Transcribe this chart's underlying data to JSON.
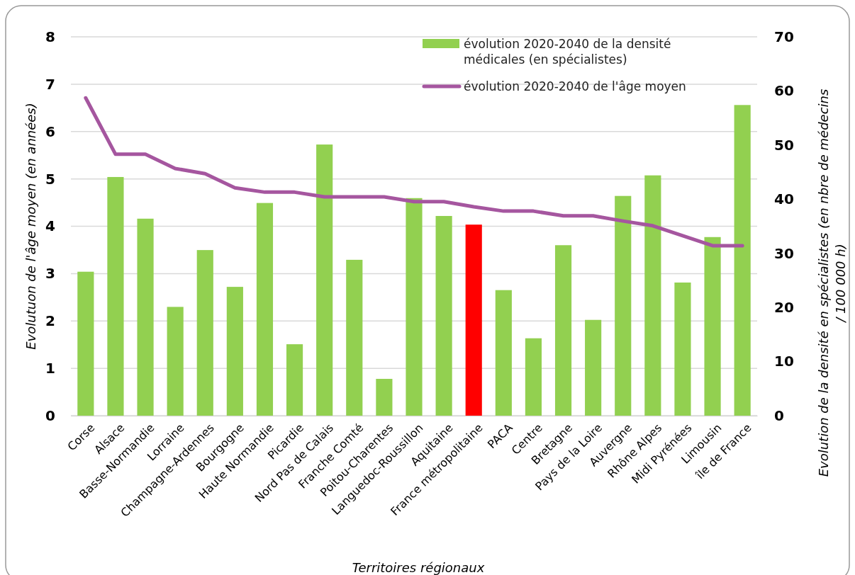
{
  "chart_data": {
    "type": "bar",
    "xlabel": "Territoires régionaux",
    "ylabel": "Evolutuon de l'âge moyen (en années)",
    "y2label": "Evolution  de la densité en spécialistes (en nbre de médecins / 100 000 h)",
    "categories": [
      "Corse",
      "Alsace",
      "Basse-Normandie",
      "Lorraine",
      "Champagne-Ardennes",
      "Bourgogne",
      "Haute Normandie",
      "Picardie",
      "Nord Pas de Calais",
      "Franche Comté",
      "Poitou-Charentes",
      "Languedoc-Roussillon",
      "Aquitaine",
      "France métropolitaine",
      "PACA",
      "Centre",
      "Bretagne",
      "Pays de la Loire",
      "Auvergne",
      "Rhône Alpes",
      "Midi Pyrénées",
      "Limousin",
      "île de France"
    ],
    "series": [
      {
        "name": "évolution 2020-2040 de la densité médicales (en spécialistes)",
        "axis": "y2",
        "color": "#92d050",
        "colors": [
          "#92d050",
          "#92d050",
          "#92d050",
          "#92d050",
          "#92d050",
          "#92d050",
          "#92d050",
          "#92d050",
          "#92d050",
          "#92d050",
          "#92d050",
          "#92d050",
          "#92d050",
          "#ff0000",
          "#92d050",
          "#92d050",
          "#92d050",
          "#92d050",
          "#92d050",
          "#92d050",
          "#92d050",
          "#92d050",
          "#92d050"
        ],
        "values": [
          26.6,
          44.1,
          36.4,
          20.1,
          30.6,
          23.8,
          39.3,
          13.2,
          50.1,
          28.8,
          6.8,
          40.2,
          36.9,
          35.3,
          23.2,
          14.3,
          31.5,
          17.7,
          40.6,
          44.4,
          24.6,
          33.0,
          57.4
        ]
      },
      {
        "name": "évolution 2020-2040 de l'âge moyen",
        "type": "line",
        "color": "#a5569f",
        "values": [
          6.71,
          5.52,
          5.52,
          5.22,
          5.11,
          4.81,
          4.72,
          4.72,
          4.62,
          4.62,
          4.62,
          4.52,
          4.52,
          4.41,
          4.32,
          4.32,
          4.22,
          4.22,
          4.11,
          4.01,
          3.8,
          3.59,
          3.59
        ]
      }
    ],
    "ylim": [
      0,
      8
    ],
    "yticks": [
      0,
      1,
      2,
      3,
      4,
      5,
      6,
      7,
      8
    ],
    "y2lim": [
      0,
      70
    ],
    "y2ticks": [
      0,
      10,
      20,
      30,
      40,
      50,
      60,
      70
    ],
    "grid": "y",
    "legend": "top right",
    "marker": "none",
    "line_style": "solid"
  }
}
